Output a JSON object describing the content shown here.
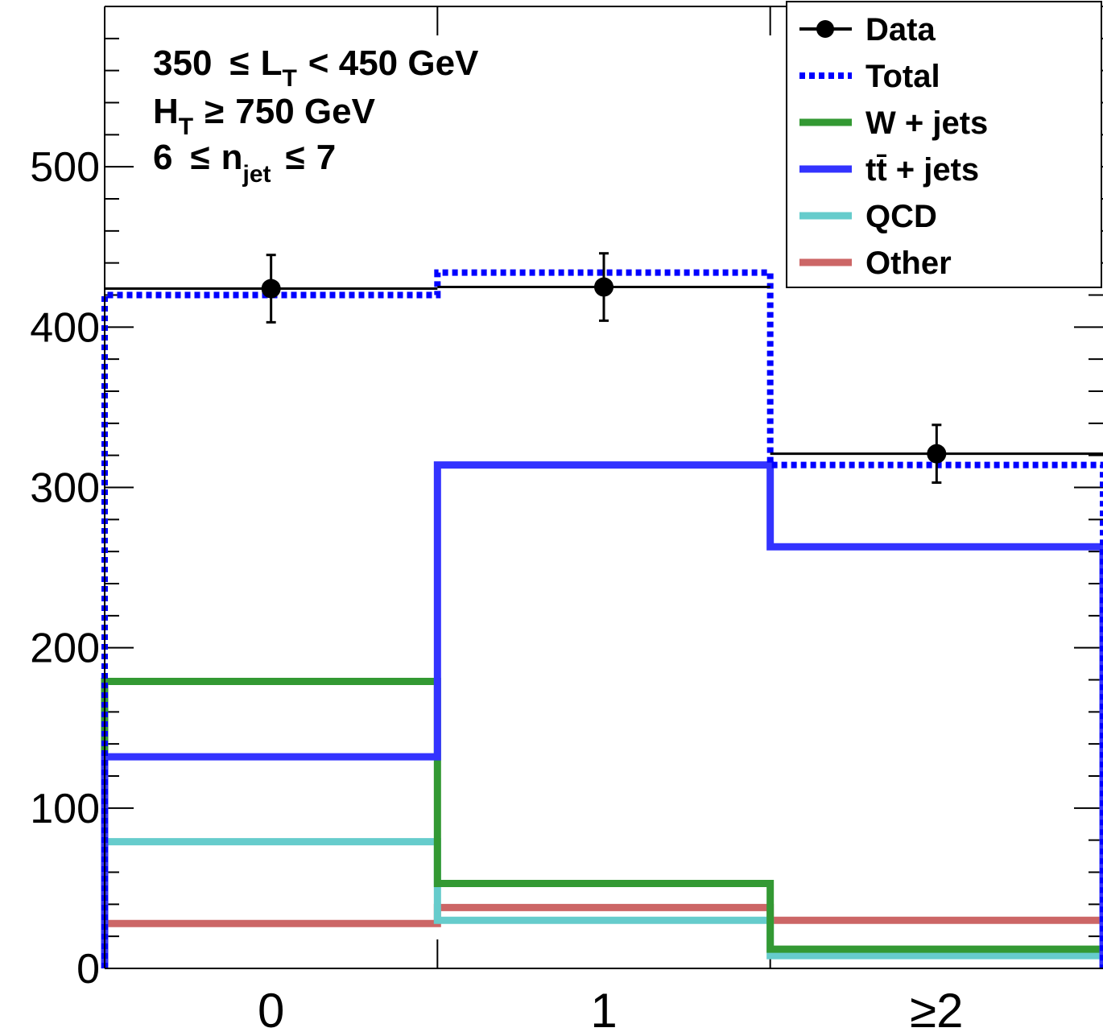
{
  "chart_data": {
    "type": "step-histogram",
    "categories": [
      "0",
      "1",
      "≥2"
    ],
    "ylim": [
      0,
      600
    ],
    "yticks": [
      0,
      100,
      200,
      300,
      400,
      500
    ],
    "series": [
      {
        "name": "Data",
        "style": "points",
        "color": "#000000",
        "values": [
          424,
          425,
          321
        ],
        "errors": [
          21,
          21,
          18
        ]
      },
      {
        "name": "Total",
        "style": "dotted",
        "color": "#0000ff",
        "values": [
          420,
          434,
          314
        ]
      },
      {
        "name": "W + jets",
        "style": "line",
        "color": "#339933",
        "values": [
          179,
          53,
          12
        ]
      },
      {
        "name": "tt̄ + jets",
        "style": "line",
        "color": "#3333ff",
        "values": [
          132,
          314,
          263
        ]
      },
      {
        "name": "QCD",
        "style": "line",
        "color": "#66cccc",
        "values": [
          79,
          30,
          8
        ]
      },
      {
        "name": "Other",
        "style": "line",
        "color": "#cc6666",
        "values": [
          28,
          38,
          30
        ]
      }
    ],
    "cuts": {
      "line1": {
        "a": "350",
        "rel": "≤",
        "b": "L",
        "bsub": "T",
        "c": "< 450 GeV"
      },
      "line2": {
        "a": "H",
        "asub": "T",
        "rel": "≥",
        "b": "750 GeV"
      },
      "line3": {
        "a": "6",
        "rel1": "≤",
        "b": "n",
        "bsub": "jet",
        "rel2": "≤",
        "c": "7"
      }
    },
    "legend": {
      "position": "top-right",
      "entries": [
        "Data",
        "Total",
        "W + jets",
        "tt̄ + jets",
        "QCD",
        "Other"
      ]
    }
  }
}
